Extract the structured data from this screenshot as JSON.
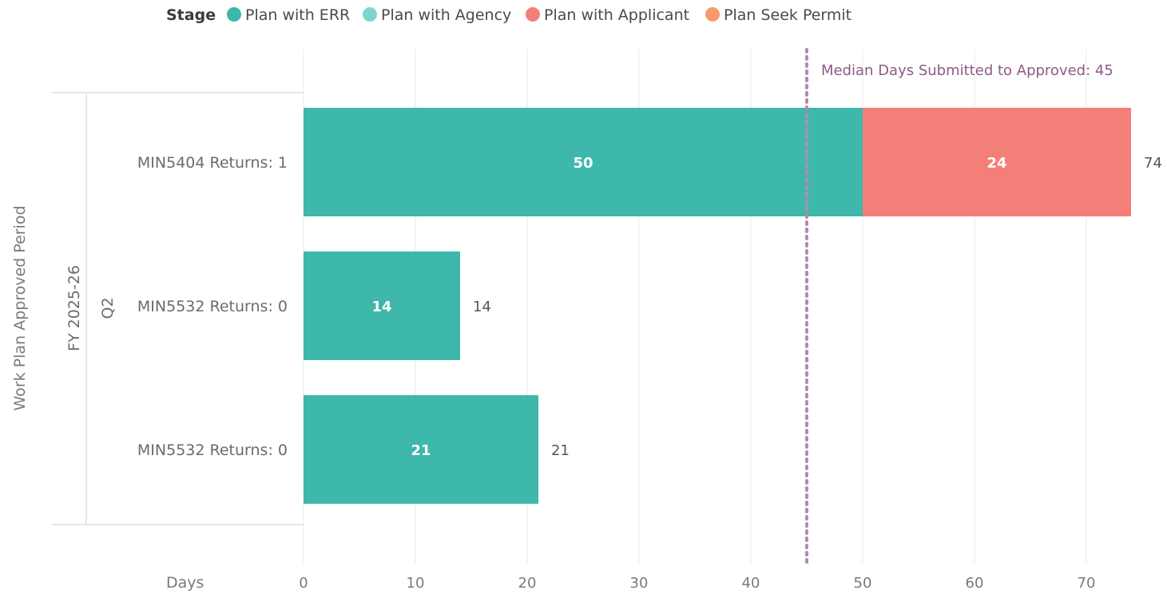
{
  "chart_data": {
    "type": "bar",
    "orientation": "horizontal",
    "stacked": true,
    "legend_title": "Stage",
    "legend_position": "top-left",
    "xlabel": "Days",
    "ylabel": "Work Plan Approved Period",
    "hierarchy": {
      "level1": "FY 2025-26",
      "level2": "Q2"
    },
    "categories": [
      "MIN5404 Returns: 1",
      "MIN5532 Returns: 0",
      "MIN5532 Returns: 0"
    ],
    "series": [
      {
        "name": "Plan with ERR",
        "color": "#3db8aa",
        "values": [
          50,
          14,
          21
        ]
      },
      {
        "name": "Plan with Agency",
        "color": "#7dd6cc",
        "values": [
          0,
          0,
          0
        ]
      },
      {
        "name": "Plan with Applicant",
        "color": "#f47f78",
        "values": [
          24,
          0,
          0
        ]
      },
      {
        "name": "Plan Seek Permit",
        "color": "#f59c6a",
        "values": [
          0,
          0,
          0
        ]
      }
    ],
    "totals": [
      74,
      14,
      21
    ],
    "xlim": [
      0,
      75
    ],
    "xticks": [
      0,
      10,
      20,
      30,
      40,
      50,
      60,
      70
    ],
    "grid": true,
    "reference_line": {
      "value": 45,
      "label": "Median Days Submitted to Approved: 45",
      "color": "#b58aae"
    }
  }
}
